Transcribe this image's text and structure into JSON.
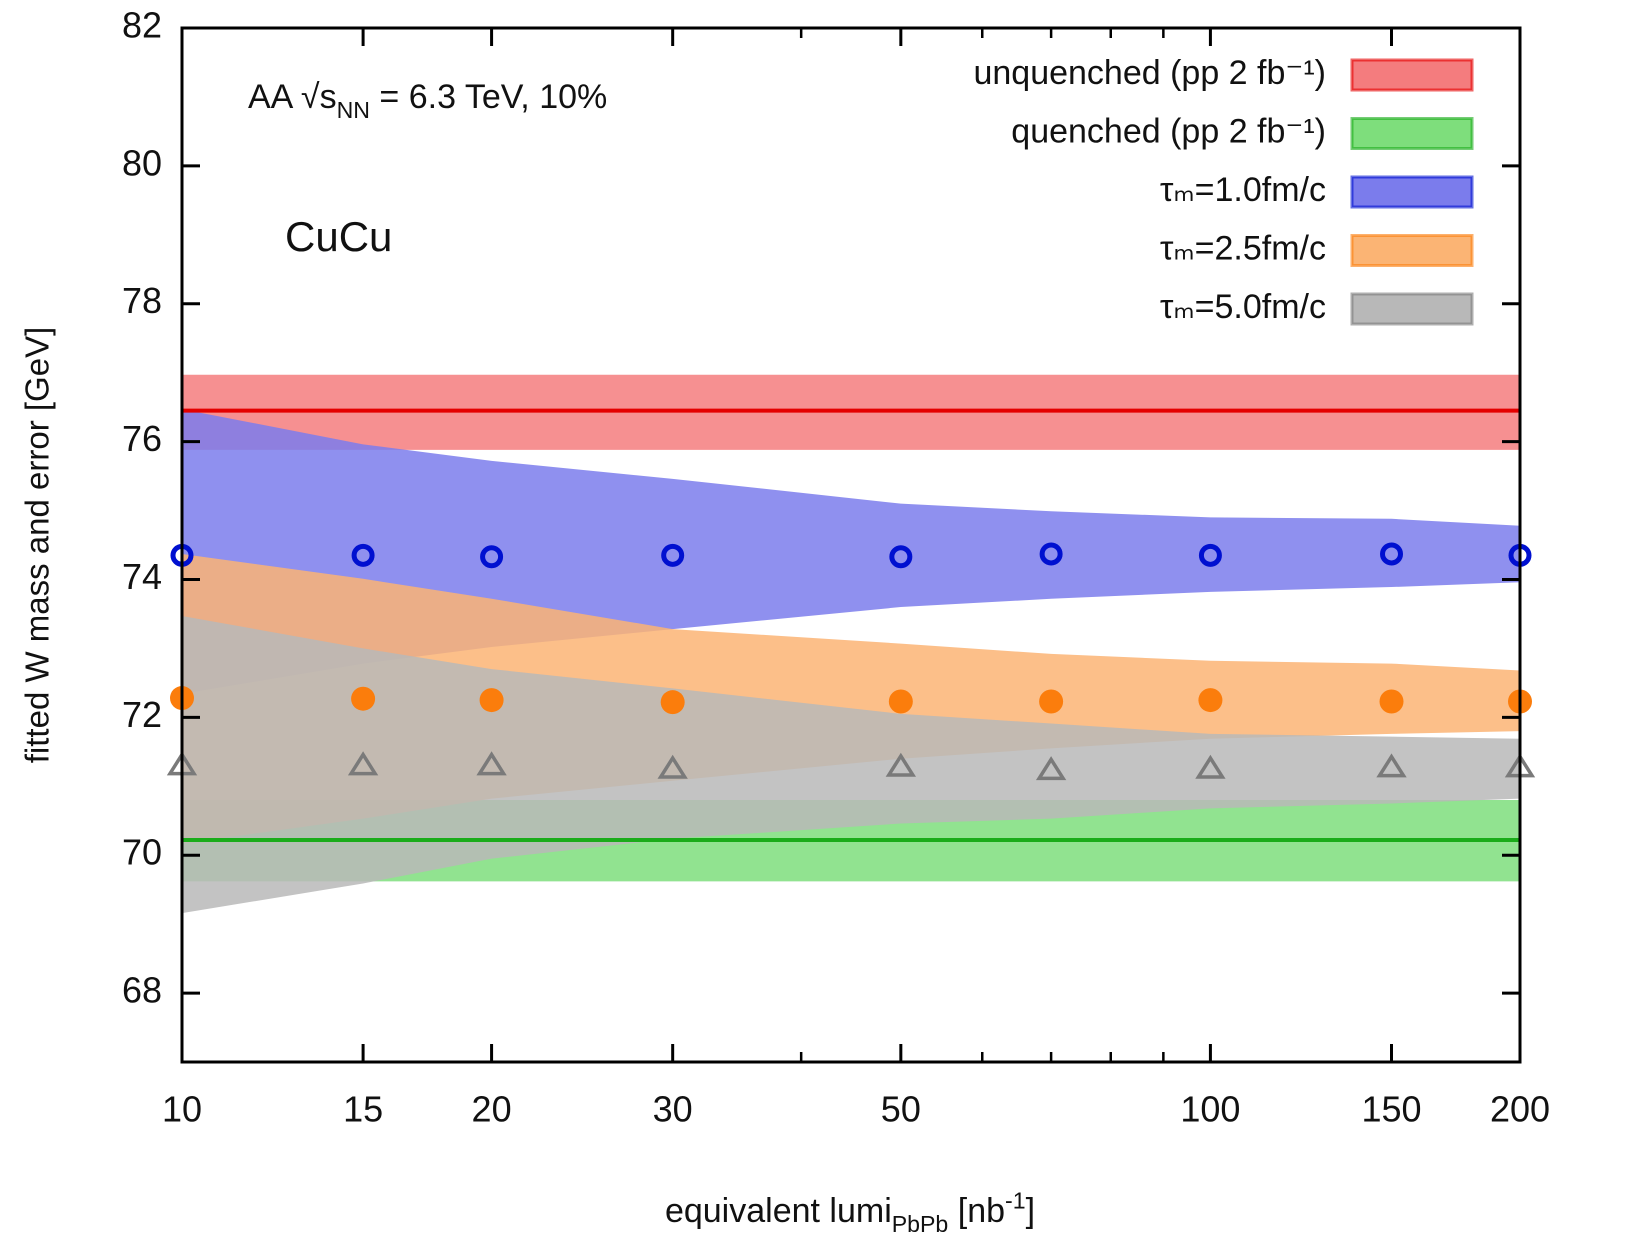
{
  "chart_data": {
    "type": "band",
    "x_label": [
      {
        "text": "equivalent lumi"
      },
      {
        "text": "PbPb",
        "sub": true
      },
      {
        "text": " [nb"
      },
      {
        "text": "-1",
        "sup": true
      },
      {
        "text": "]"
      }
    ],
    "y_label": "fitted W mass and error [GeV]",
    "annotation": [
      {
        "text": "AA √s"
      },
      {
        "text": "NN",
        "sub": true
      },
      {
        "text": " = 6.3 TeV, 10%"
      }
    ],
    "system_label": "CuCu",
    "system_label_color": "#3b5a1e",
    "xscale": "log",
    "xlim": [
      10,
      200
    ],
    "xticks": [
      10,
      15,
      20,
      30,
      50,
      100,
      150,
      200
    ],
    "xminorticks": [
      40,
      60,
      70,
      80,
      90
    ],
    "ylim": [
      67,
      82
    ],
    "yticks": [
      68,
      70,
      72,
      74,
      76,
      78,
      80,
      82
    ],
    "legend": "upper right",
    "x": [
      10,
      15,
      20,
      30,
      50,
      70,
      100,
      150,
      200
    ],
    "series": [
      {
        "name": "unquenched (pp 2 fb⁻¹)",
        "color": "#f47c7e",
        "line_color": "#e40000",
        "x": [
          10,
          200
        ],
        "values": [
          76.45,
          76.45
        ],
        "lower": [
          75.88,
          75.88
        ],
        "upper": [
          76.97,
          76.97
        ]
      },
      {
        "name": "quenched (pp 2 fb⁻¹)",
        "color": "#7ede7c",
        "line_color": "#1aac1a",
        "x": [
          10,
          200
        ],
        "values": [
          70.22,
          70.22
        ],
        "lower": [
          69.62,
          69.62
        ],
        "upper": [
          70.8,
          70.8
        ]
      },
      {
        "name": "τₘ=1.0fm/c",
        "color": "#7b7cec",
        "marker": "circle",
        "marker_color": "#0010d0",
        "values": [
          74.35,
          74.35,
          74.33,
          74.35,
          74.33,
          74.37,
          74.35,
          74.37,
          74.35
        ],
        "lower": [
          72.34,
          72.78,
          73.02,
          73.28,
          73.6,
          73.72,
          73.82,
          73.89,
          73.96
        ],
        "upper": [
          76.47,
          75.96,
          75.72,
          75.46,
          75.1,
          74.99,
          74.9,
          74.88,
          74.78
        ]
      },
      {
        "name": "τₘ=2.5fm/c",
        "color": "#fbb474",
        "marker": "dot",
        "marker_color": "#fb7d0c",
        "values": [
          72.28,
          72.27,
          72.25,
          72.22,
          72.23,
          72.23,
          72.25,
          72.23,
          72.23
        ],
        "lower": [
          70.17,
          70.53,
          70.82,
          71.08,
          71.4,
          71.55,
          71.69,
          71.76,
          71.8
        ],
        "upper": [
          74.37,
          74.01,
          73.72,
          73.28,
          73.07,
          72.92,
          72.82,
          72.78,
          72.68
        ]
      },
      {
        "name": "τₘ=5.0fm/c",
        "color": "#b8b8b8",
        "marker": "triangle",
        "marker_color": "#7a7a7a",
        "values": [
          71.3,
          71.3,
          71.3,
          71.25,
          71.28,
          71.23,
          71.25,
          71.27,
          71.27
        ],
        "lower": [
          69.16,
          69.59,
          69.95,
          70.24,
          70.46,
          70.53,
          70.68,
          70.75,
          70.82
        ],
        "upper": [
          73.47,
          73.0,
          72.7,
          72.42,
          72.05,
          71.91,
          71.76,
          71.72,
          71.69
        ]
      }
    ]
  }
}
